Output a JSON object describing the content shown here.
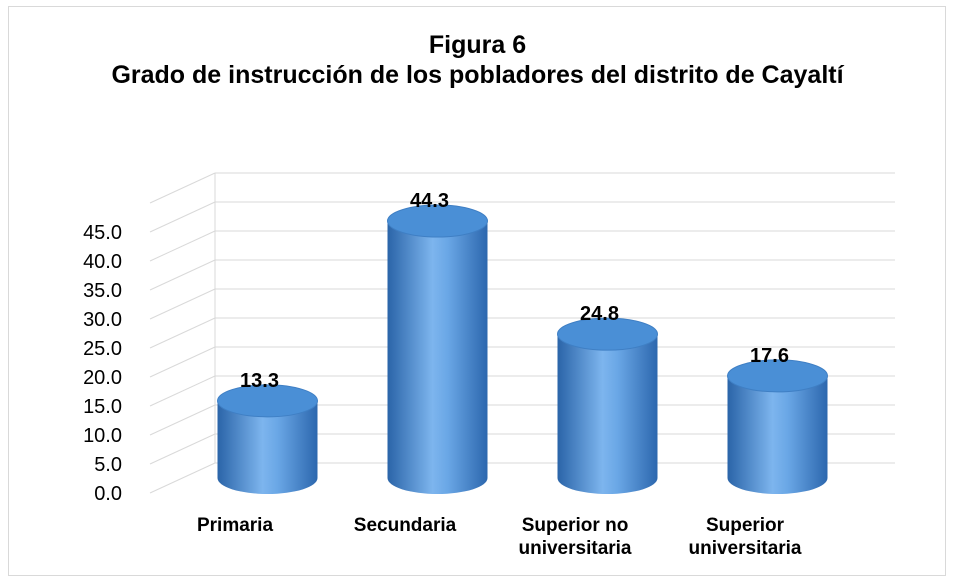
{
  "chart_data": {
    "type": "cylinder-bar",
    "title": "Figura 6",
    "subtitle": "Grado de instrucción de los pobladores del distrito de Cayaltí",
    "categories": [
      "Primaria",
      "Secundaria",
      "Superior no universitaria",
      "Superior universitaria"
    ],
    "values": [
      13.3,
      44.3,
      24.8,
      17.6
    ],
    "color": "#4a8fd6",
    "ylim": [
      0,
      50
    ],
    "yticks": [
      {
        "value": 0,
        "label": "0.0"
      },
      {
        "value": 5,
        "label": "5.0"
      },
      {
        "value": 10,
        "label": "10.0"
      },
      {
        "value": 15,
        "label": "15.0"
      },
      {
        "value": 20,
        "label": "20.0"
      },
      {
        "value": 25,
        "label": "25.0"
      },
      {
        "value": 30,
        "label": "30.0"
      },
      {
        "value": 35,
        "label": "35.0"
      },
      {
        "value": 40,
        "label": "40.0"
      },
      {
        "value": 45,
        "label": "45.0"
      }
    ],
    "grid": true
  }
}
